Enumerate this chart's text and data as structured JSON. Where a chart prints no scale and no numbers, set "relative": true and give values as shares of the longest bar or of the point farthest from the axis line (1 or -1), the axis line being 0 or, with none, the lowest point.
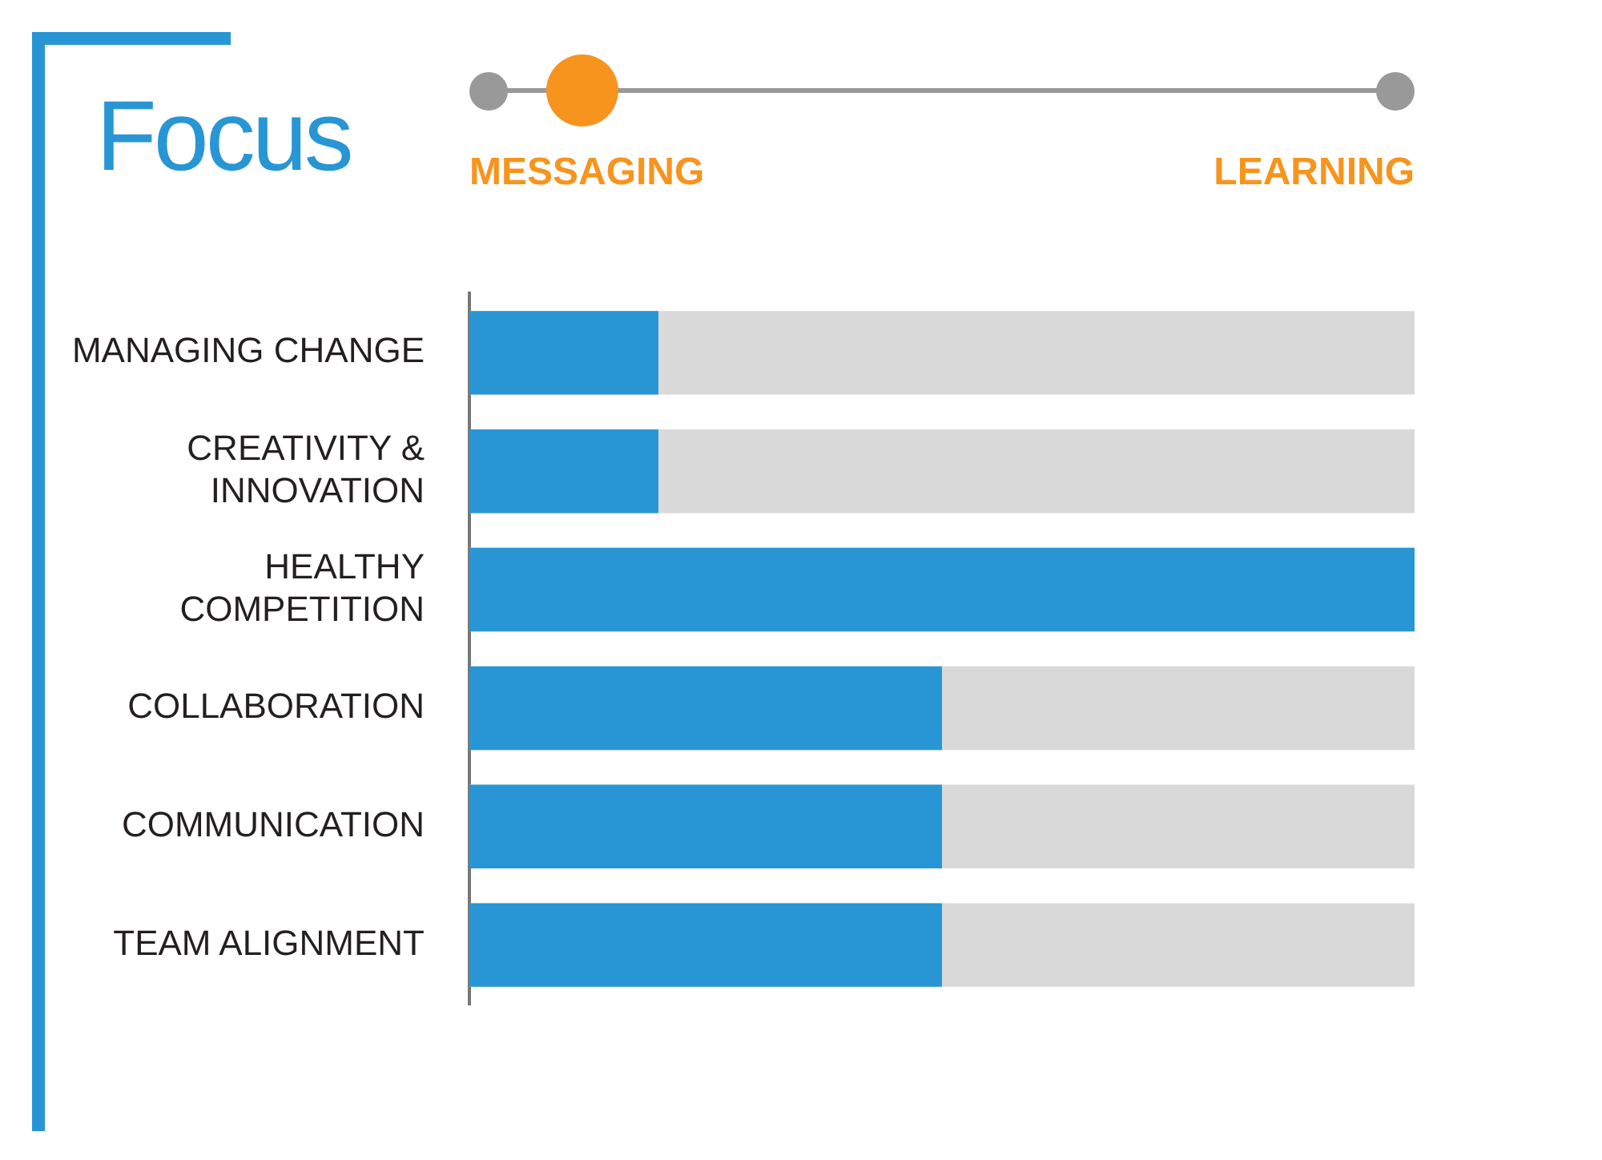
{
  "chart_data": {
    "type": "bar",
    "orientation": "horizontal",
    "relative": true,
    "title": "Focus",
    "annotations": [
      "MESSAGING",
      "LEARNING"
    ],
    "categories": [
      "MANAGING CHANGE",
      "CREATIVITY & INNOVATION",
      "HEALTHY COMPETITION",
      "COLLABORATION",
      "COMMUNICATION",
      "TEAM ALIGNMENT"
    ],
    "values": [
      0.2,
      0.2,
      1,
      0.5,
      0.5,
      0.5
    ],
    "color": "#2896d4"
  }
}
